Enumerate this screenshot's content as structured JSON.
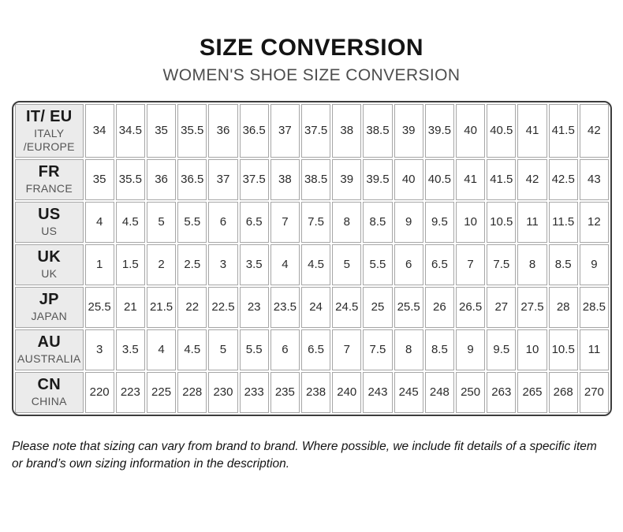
{
  "header": {
    "title": "SIZE CONVERSION",
    "subtitle": "WOMEN'S SHOE SIZE CONVERSION"
  },
  "table": {
    "rows": [
      {
        "code": "IT/ EU",
        "region": "ITALY /EUROPE",
        "sizes": [
          "34",
          "34.5",
          "35",
          "35.5",
          "36",
          "36.5",
          "37",
          "37.5",
          "38",
          "38.5",
          "39",
          "39.5",
          "40",
          "40.5",
          "41",
          "41.5",
          "42"
        ]
      },
      {
        "code": "FR",
        "region": "FRANCE",
        "sizes": [
          "35",
          "35.5",
          "36",
          "36.5",
          "37",
          "37.5",
          "38",
          "38.5",
          "39",
          "39.5",
          "40",
          "40.5",
          "41",
          "41.5",
          "42",
          "42.5",
          "43"
        ]
      },
      {
        "code": "US",
        "region": "US",
        "sizes": [
          "4",
          "4.5",
          "5",
          "5.5",
          "6",
          "6.5",
          "7",
          "7.5",
          "8",
          "8.5",
          "9",
          "9.5",
          "10",
          "10.5",
          "11",
          "11.5",
          "12"
        ]
      },
      {
        "code": "UK",
        "region": "UK",
        "sizes": [
          "1",
          "1.5",
          "2",
          "2.5",
          "3",
          "3.5",
          "4",
          "4.5",
          "5",
          "5.5",
          "6",
          "6.5",
          "7",
          "7.5",
          "8",
          "8.5",
          "9"
        ]
      },
      {
        "code": "JP",
        "region": "JAPAN",
        "sizes": [
          "25.5",
          "21",
          "21.5",
          "22",
          "22.5",
          "23",
          "23.5",
          "24",
          "24.5",
          "25",
          "25.5",
          "26",
          "26.5",
          "27",
          "27.5",
          "28",
          "28.5"
        ]
      },
      {
        "code": "AU",
        "region": "AUSTRALIA",
        "sizes": [
          "3",
          "3.5",
          "4",
          "4.5",
          "5",
          "5.5",
          "6",
          "6.5",
          "7",
          "7.5",
          "8",
          "8.5",
          "9",
          "9.5",
          "10",
          "10.5",
          "11"
        ]
      },
      {
        "code": "CN",
        "region": "CHINA",
        "sizes": [
          "220",
          "223",
          "225",
          "228",
          "230",
          "233",
          "235",
          "238",
          "240",
          "243",
          "245",
          "248",
          "250",
          "263",
          "265",
          "268",
          "270"
        ]
      }
    ]
  },
  "footer": {
    "note": "Please note that sizing can vary from brand to brand. Where possible, we include fit details of a specific item or brand’s own sizing information in the description."
  },
  "colors": {
    "outer_border": "#3d3d3d",
    "cell_border": "#a6a6a6",
    "header_cell_bg": "#ebebeb",
    "title_text": "#141414",
    "subtitle_text": "#4d4d4d",
    "region_text": "#555555",
    "cell_text": "#2b2b2b"
  }
}
